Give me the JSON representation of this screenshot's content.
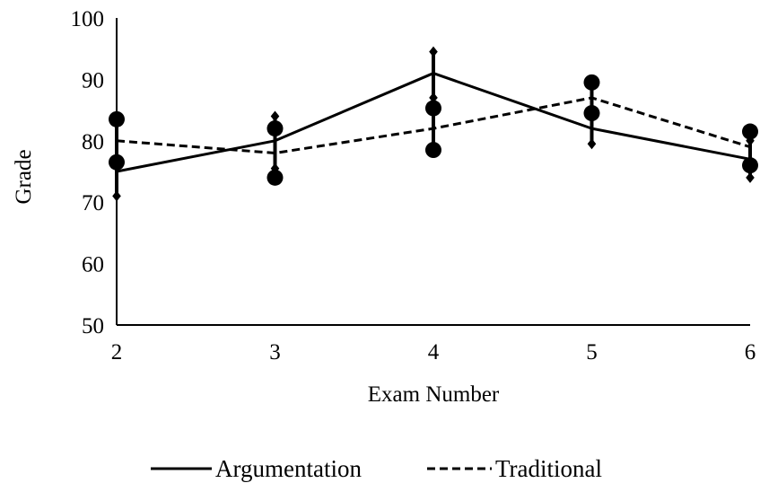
{
  "chart_data": {
    "type": "line",
    "xlabel": "Exam Number",
    "ylabel": "Grade",
    "x": [
      2,
      3,
      4,
      5,
      6
    ],
    "xlim": [
      2,
      6
    ],
    "ylim": [
      50,
      100
    ],
    "yticks": [
      50,
      60,
      70,
      80,
      90,
      100
    ],
    "grid": false,
    "legend": "bottom-center",
    "series": [
      {
        "name": "Argumentation",
        "style": "solid",
        "values": [
          75,
          80,
          91,
          82,
          77
        ],
        "error_bars": [
          [
            71,
            76.5
          ],
          [
            75.5,
            84
          ],
          [
            87,
            94.5
          ],
          [
            79.5,
            84.5
          ],
          [
            74,
            80
          ]
        ],
        "marker": "diamond"
      },
      {
        "name": "Traditional",
        "style": "dashed",
        "values": [
          80,
          78,
          82,
          87,
          79
        ],
        "error_bars": [
          [
            76.5,
            83.5
          ],
          [
            74,
            82
          ],
          [
            78.5,
            85.3
          ],
          [
            84.5,
            89.5
          ],
          [
            76,
            81.5
          ]
        ],
        "marker": "circle"
      }
    ]
  }
}
